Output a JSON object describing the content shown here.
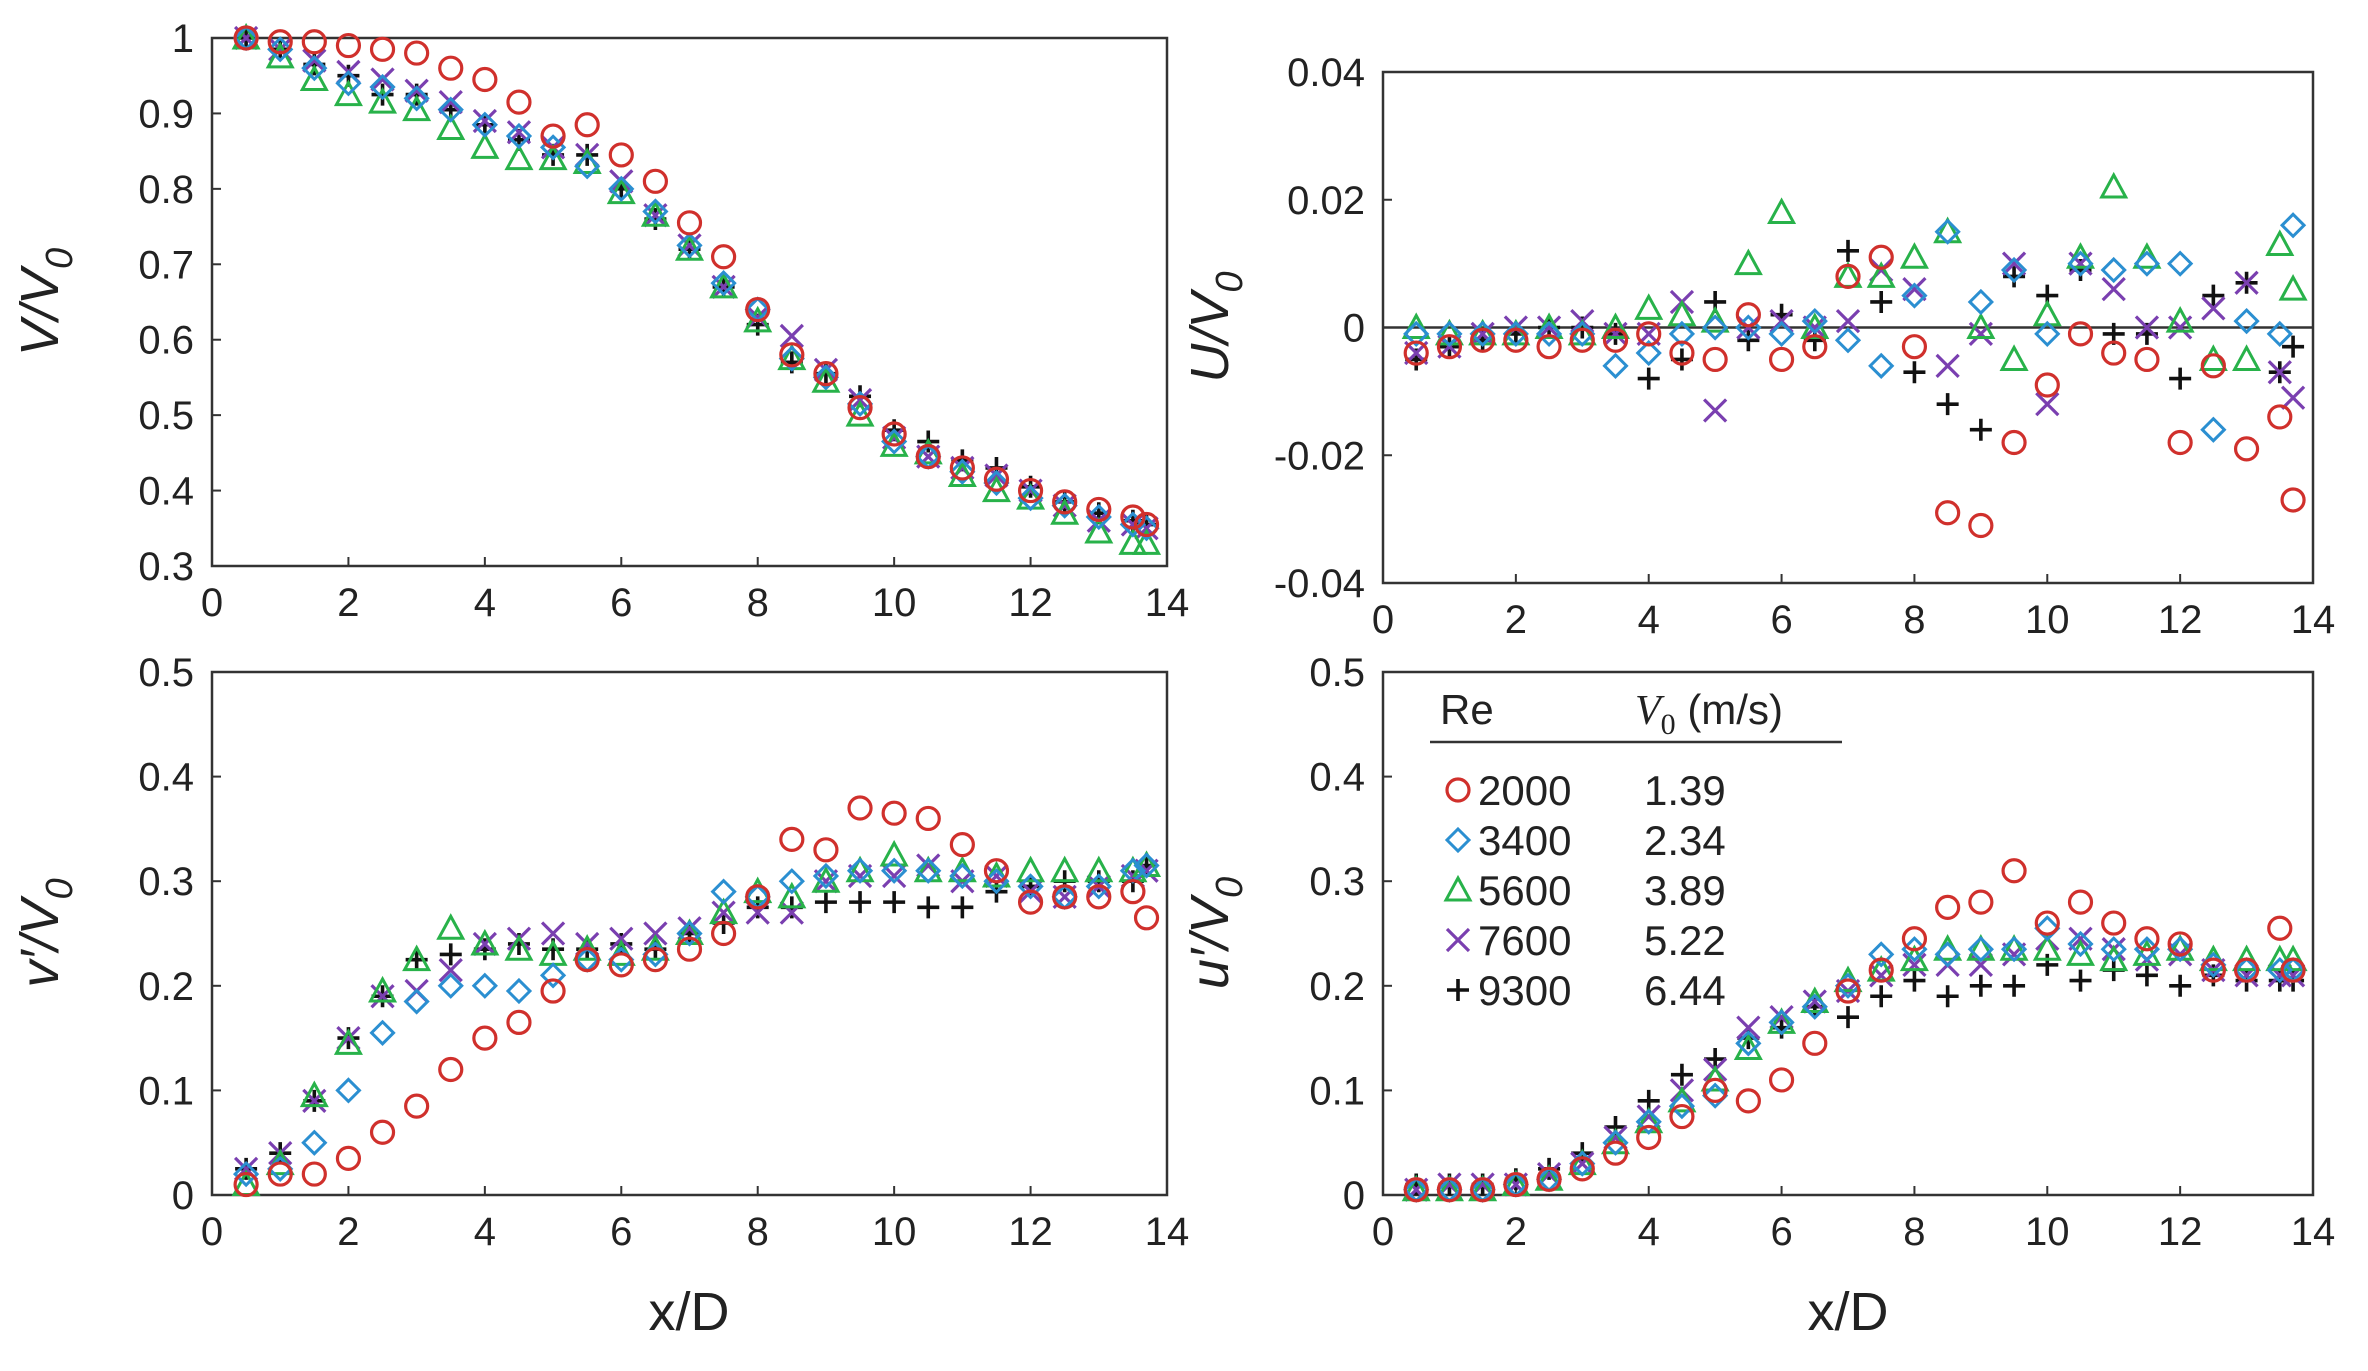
{
  "colors": {
    "2000": "#d0302c",
    "3400": "#2b8fd1",
    "5600": "#28b24a",
    "7600": "#7a3fb0",
    "9300": "#111111"
  },
  "legend": {
    "header_re": "Re",
    "header_v0_symbol": "V",
    "header_v0_sub": "0",
    "header_v0_unit": " (m/s)",
    "entries": [
      {
        "re": "2000",
        "v0": "1.39",
        "marker": "circle"
      },
      {
        "re": "3400",
        "v0": "2.34",
        "marker": "diamond"
      },
      {
        "re": "5600",
        "v0": "3.89",
        "marker": "triangle"
      },
      {
        "re": "7600",
        "v0": "5.22",
        "marker": "cross"
      },
      {
        "re": "9300",
        "v0": "6.44",
        "marker": "plus"
      }
    ]
  },
  "chart_data": [
    {
      "id": "mean-v",
      "type": "scatter",
      "ylabel_main": "V/V",
      "ylabel_sub": "0",
      "xlabel": "",
      "xlim": [
        0,
        14
      ],
      "ylim": [
        0.3,
        1
      ],
      "xticks": [
        "0",
        "2",
        "4",
        "6",
        "8",
        "10",
        "12",
        "14"
      ],
      "yticks": [
        "0.3",
        "0.4",
        "0.5",
        "0.6",
        "0.7",
        "0.8",
        "0.9",
        "1"
      ],
      "zero_line": false,
      "x": [
        0.5,
        1,
        1.5,
        2,
        2.5,
        3,
        3.5,
        4,
        4.5,
        5,
        5.5,
        6,
        6.5,
        7,
        7.5,
        8,
        8.5,
        9,
        9.5,
        10,
        10.5,
        11,
        11.5,
        12,
        12.5,
        13,
        13.5,
        13.7
      ],
      "series": [
        {
          "name": "2000",
          "values": [
            1.0,
            0.995,
            0.995,
            0.99,
            0.985,
            0.98,
            0.96,
            0.945,
            0.915,
            0.87,
            0.885,
            0.845,
            0.81,
            0.755,
            0.71,
            0.64,
            0.58,
            0.555,
            0.51,
            0.475,
            0.445,
            0.43,
            0.415,
            0.4,
            0.385,
            0.375,
            0.365,
            0.355
          ]
        },
        {
          "name": "3400",
          "values": [
            1.0,
            0.985,
            0.96,
            0.94,
            0.935,
            0.92,
            0.905,
            0.885,
            0.87,
            0.855,
            0.83,
            0.8,
            0.77,
            0.725,
            0.675,
            0.64,
            0.575,
            0.55,
            0.515,
            0.465,
            0.445,
            0.425,
            0.41,
            0.39,
            0.38,
            0.365,
            0.355,
            0.35
          ]
        },
        {
          "name": "5600",
          "values": [
            1.0,
            0.975,
            0.945,
            0.925,
            0.915,
            0.905,
            0.88,
            0.855,
            0.84,
            0.84,
            0.835,
            0.795,
            0.765,
            0.72,
            0.67,
            0.625,
            0.575,
            0.545,
            0.5,
            0.46,
            0.45,
            0.42,
            0.4,
            0.39,
            0.37,
            0.345,
            0.33,
            0.33
          ]
        },
        {
          "name": "7600",
          "values": [
            1.0,
            0.985,
            0.97,
            0.955,
            0.945,
            0.93,
            0.915,
            0.89,
            0.875,
            0.855,
            0.845,
            0.81,
            0.765,
            0.725,
            0.67,
            0.63,
            0.605,
            0.56,
            0.52,
            0.47,
            0.445,
            0.43,
            0.42,
            0.4,
            0.38,
            0.36,
            0.355,
            0.35
          ]
        },
        {
          "name": "9300",
          "values": [
            1.0,
            0.985,
            0.965,
            0.95,
            0.925,
            0.925,
            0.905,
            0.885,
            0.865,
            0.845,
            0.845,
            0.8,
            0.76,
            0.72,
            0.67,
            0.62,
            0.57,
            0.555,
            0.525,
            0.48,
            0.465,
            0.44,
            0.43,
            0.405,
            0.385,
            0.37,
            0.36,
            0.355
          ]
        }
      ]
    },
    {
      "id": "mean-u",
      "type": "scatter",
      "ylabel_main": "U/V",
      "ylabel_sub": "0",
      "xlabel": "",
      "xlim": [
        0,
        14
      ],
      "ylim": [
        -0.04,
        0.04
      ],
      "xticks": [
        "0",
        "2",
        "4",
        "6",
        "8",
        "10",
        "12",
        "14"
      ],
      "yticks": [
        "-0.04",
        "-0.02",
        "0",
        "0.02",
        "0.04"
      ],
      "zero_line": true,
      "x": [
        0.5,
        1,
        1.5,
        2,
        2.5,
        3,
        3.5,
        4,
        4.5,
        5,
        5.5,
        6,
        6.5,
        7,
        7.5,
        8,
        8.5,
        9,
        9.5,
        10,
        10.5,
        11,
        11.5,
        12,
        12.5,
        13,
        13.5,
        13.7
      ],
      "series": [
        {
          "name": "2000",
          "values": [
            -0.004,
            -0.003,
            -0.002,
            -0.002,
            -0.003,
            -0.002,
            -0.002,
            -0.001,
            -0.004,
            -0.005,
            0.002,
            -0.005,
            -0.003,
            0.008,
            0.011,
            -0.003,
            -0.029,
            -0.031,
            -0.018,
            -0.009,
            -0.001,
            -0.004,
            -0.005,
            -0.018,
            -0.006,
            -0.019,
            -0.014,
            -0.027
          ]
        },
        {
          "name": "3400",
          "values": [
            -0.001,
            -0.001,
            -0.001,
            -0.001,
            -0.001,
            -0.001,
            -0.006,
            -0.004,
            -0.001,
            0.0,
            0.0,
            -0.001,
            0.001,
            -0.002,
            -0.006,
            0.005,
            0.015,
            0.004,
            0.009,
            -0.001,
            0.01,
            0.009,
            0.01,
            0.01,
            -0.016,
            0.001,
            -0.001,
            0.016
          ]
        },
        {
          "name": "5600",
          "values": [
            0.0,
            -0.001,
            -0.001,
            -0.001,
            0.0,
            -0.001,
            0.0,
            0.003,
            0.002,
            0.001,
            0.01,
            0.018,
            0.0,
            0.008,
            0.008,
            0.011,
            0.015,
            0.0,
            -0.005,
            0.002,
            0.011,
            0.022,
            0.011,
            0.001,
            -0.005,
            -0.005,
            0.013,
            0.006
          ]
        },
        {
          "name": "7600",
          "values": [
            -0.004,
            -0.003,
            -0.001,
            0.0,
            0.0,
            0.001,
            -0.001,
            -0.001,
            0.004,
            -0.013,
            0.0,
            0.001,
            0.0,
            0.001,
            0.009,
            0.006,
            -0.006,
            -0.001,
            0.01,
            -0.012,
            0.01,
            0.006,
            0.0,
            0.0,
            0.003,
            0.007,
            -0.007,
            -0.011
          ]
        },
        {
          "name": "9300",
          "values": [
            -0.005,
            -0.003,
            -0.002,
            -0.001,
            0.0,
            0.0,
            -0.001,
            -0.008,
            -0.005,
            0.004,
            -0.002,
            0.002,
            -0.002,
            0.012,
            0.004,
            -0.007,
            -0.012,
            -0.016,
            0.008,
            0.005,
            0.009,
            -0.001,
            -0.001,
            -0.008,
            0.005,
            0.007,
            -0.007,
            -0.003
          ]
        }
      ]
    },
    {
      "id": "rms-v",
      "type": "scatter",
      "ylabel_main": "v′/V",
      "ylabel_sub": "0",
      "xlabel": "x/D",
      "xlim": [
        0,
        14
      ],
      "ylim": [
        0,
        0.5
      ],
      "xticks": [
        "0",
        "2",
        "4",
        "6",
        "8",
        "10",
        "12",
        "14"
      ],
      "yticks": [
        "0",
        "0.1",
        "0.2",
        "0.3",
        "0.4",
        "0.5"
      ],
      "zero_line": false,
      "x": [
        0.5,
        1,
        1.5,
        2,
        2.5,
        3,
        3.5,
        4,
        4.5,
        5,
        5.5,
        6,
        6.5,
        7,
        7.5,
        8,
        8.5,
        9,
        9.5,
        10,
        10.5,
        11,
        11.5,
        12,
        12.5,
        13,
        13.5,
        13.7
      ],
      "series": [
        {
          "name": "2000",
          "values": [
            0.01,
            0.02,
            0.02,
            0.035,
            0.06,
            0.085,
            0.12,
            0.15,
            0.165,
            0.195,
            0.225,
            0.22,
            0.225,
            0.235,
            0.25,
            0.285,
            0.34,
            0.33,
            0.37,
            0.365,
            0.36,
            0.335,
            0.31,
            0.28,
            0.285,
            0.285,
            0.29,
            0.265
          ]
        },
        {
          "name": "3400",
          "values": [
            0.02,
            0.025,
            0.05,
            0.1,
            0.155,
            0.185,
            0.2,
            0.2,
            0.195,
            0.21,
            0.225,
            0.225,
            0.23,
            0.25,
            0.29,
            0.285,
            0.3,
            0.305,
            0.31,
            0.31,
            0.31,
            0.305,
            0.3,
            0.295,
            0.285,
            0.295,
            0.31,
            0.315
          ]
        },
        {
          "name": "5600",
          "values": [
            0.01,
            0.03,
            0.095,
            0.145,
            0.195,
            0.225,
            0.255,
            0.24,
            0.235,
            0.23,
            0.235,
            0.23,
            0.235,
            0.25,
            0.27,
            0.29,
            0.285,
            0.3,
            0.31,
            0.325,
            0.31,
            0.31,
            0.305,
            0.31,
            0.31,
            0.31,
            0.31,
            0.315
          ]
        },
        {
          "name": "7600",
          "values": [
            0.025,
            0.04,
            0.09,
            0.15,
            0.19,
            0.195,
            0.215,
            0.24,
            0.245,
            0.25,
            0.24,
            0.245,
            0.25,
            0.255,
            0.27,
            0.27,
            0.27,
            0.3,
            0.305,
            0.305,
            0.315,
            0.3,
            0.305,
            0.29,
            0.285,
            0.295,
            0.305,
            0.31
          ]
        },
        {
          "name": "9300",
          "values": [
            0.025,
            0.04,
            0.09,
            0.15,
            0.19,
            0.225,
            0.23,
            0.235,
            0.24,
            0.235,
            0.235,
            0.24,
            0.235,
            0.25,
            0.26,
            0.275,
            0.275,
            0.28,
            0.28,
            0.28,
            0.275,
            0.275,
            0.29,
            0.295,
            0.3,
            0.3,
            0.3,
            0.315
          ]
        }
      ]
    },
    {
      "id": "rms-u",
      "type": "scatter",
      "ylabel_main": "u′/V",
      "ylabel_sub": "0",
      "xlabel": "x/D",
      "xlim": [
        0,
        14
      ],
      "ylim": [
        0,
        0.5
      ],
      "xticks": [
        "0",
        "2",
        "4",
        "6",
        "8",
        "10",
        "12",
        "14"
      ],
      "yticks": [
        "0",
        "0.1",
        "0.2",
        "0.3",
        "0.4",
        "0.5"
      ],
      "zero_line": false,
      "x": [
        0.5,
        1,
        1.5,
        2,
        2.5,
        3,
        3.5,
        4,
        4.5,
        5,
        5.5,
        6,
        6.5,
        7,
        7.5,
        8,
        8.5,
        9,
        9.5,
        10,
        10.5,
        11,
        11.5,
        12,
        12.5,
        13,
        13.5,
        13.7
      ],
      "series": [
        {
          "name": "2000",
          "values": [
            0.005,
            0.005,
            0.005,
            0.01,
            0.015,
            0.025,
            0.04,
            0.055,
            0.075,
            0.1,
            0.09,
            0.11,
            0.145,
            0.195,
            0.215,
            0.245,
            0.275,
            0.28,
            0.31,
            0.26,
            0.28,
            0.26,
            0.245,
            0.24,
            0.215,
            0.215,
            0.255,
            0.215
          ]
        },
        {
          "name": "3400",
          "values": [
            0.005,
            0.005,
            0.005,
            0.01,
            0.015,
            0.03,
            0.05,
            0.07,
            0.085,
            0.095,
            0.145,
            0.165,
            0.18,
            0.2,
            0.23,
            0.235,
            0.23,
            0.235,
            0.235,
            0.255,
            0.24,
            0.235,
            0.235,
            0.235,
            0.22,
            0.215,
            0.215,
            0.215
          ]
        },
        {
          "name": "5600",
          "values": [
            0.005,
            0.005,
            0.005,
            0.01,
            0.015,
            0.03,
            0.05,
            0.07,
            0.09,
            0.11,
            0.14,
            0.165,
            0.185,
            0.205,
            0.215,
            0.225,
            0.235,
            0.235,
            0.235,
            0.235,
            0.23,
            0.225,
            0.23,
            0.235,
            0.225,
            0.225,
            0.225,
            0.225
          ]
        },
        {
          "name": "7600",
          "values": [
            0.005,
            0.01,
            0.01,
            0.01,
            0.02,
            0.03,
            0.055,
            0.075,
            0.1,
            0.12,
            0.16,
            0.17,
            0.185,
            0.195,
            0.21,
            0.22,
            0.22,
            0.22,
            0.23,
            0.245,
            0.245,
            0.235,
            0.225,
            0.23,
            0.215,
            0.21,
            0.21,
            0.21
          ]
        },
        {
          "name": "9300",
          "values": [
            0.01,
            0.01,
            0.01,
            0.015,
            0.025,
            0.04,
            0.065,
            0.09,
            0.115,
            0.13,
            0.15,
            0.16,
            0.18,
            0.17,
            0.19,
            0.205,
            0.19,
            0.2,
            0.2,
            0.22,
            0.205,
            0.215,
            0.21,
            0.2,
            0.21,
            0.205,
            0.205,
            0.205
          ]
        }
      ]
    }
  ]
}
